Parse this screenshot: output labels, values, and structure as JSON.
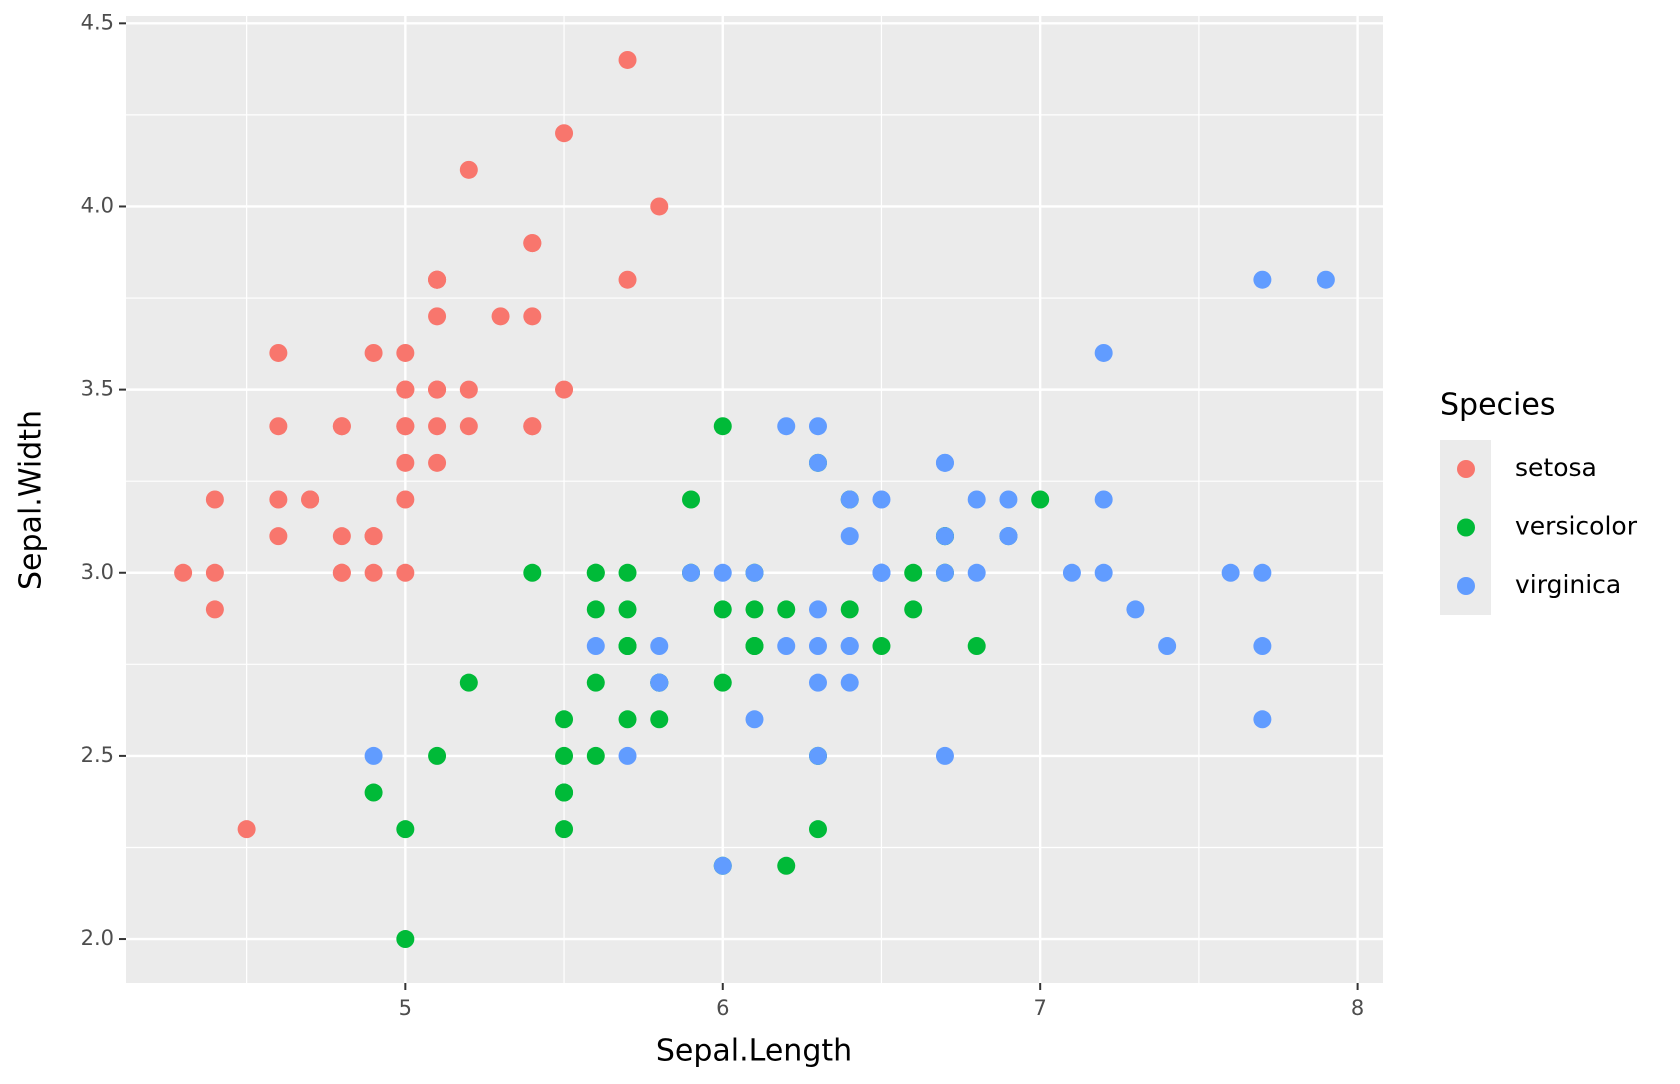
{
  "chart_data": {
    "type": "scatter",
    "x_label": "Sepal.Length",
    "y_label": "Sepal.Width",
    "legend_title": "Species",
    "legend_position": "right",
    "grid": true,
    "xlim": [
      4.12,
      8.08
    ],
    "ylim": [
      1.88,
      4.52
    ],
    "xticks": [
      5,
      6,
      7,
      8
    ],
    "yticks": [
      {
        "value": 2,
        "label": "2.0"
      },
      2.5,
      {
        "value": 3,
        "label": "3.0"
      },
      3.5,
      {
        "value": 4,
        "label": "4.0"
      },
      4.5
    ],
    "x_minor_ticks": [
      4.5,
      5.5,
      6.5,
      7.5
    ],
    "y_minor_ticks": [
      2.25,
      2.75,
      3.25,
      3.75,
      4.25
    ],
    "series": [
      {
        "name": "setosa",
        "color": "#F8766D",
        "x": [
          5.1,
          4.9,
          4.7,
          4.6,
          5.0,
          5.4,
          4.6,
          5.0,
          4.4,
          4.9,
          5.4,
          4.8,
          4.8,
          4.3,
          5.8,
          5.7,
          5.4,
          5.1,
          5.7,
          5.1,
          5.4,
          5.1,
          4.6,
          5.1,
          4.8,
          5.0,
          5.0,
          5.2,
          5.2,
          4.7,
          4.8,
          5.4,
          5.2,
          5.5,
          4.9,
          5.0,
          5.5,
          4.9,
          4.4,
          5.1,
          5.0,
          4.5,
          4.4,
          5.0,
          5.1,
          4.8,
          5.1,
          4.6,
          5.3,
          5.0
        ],
        "values": [
          3.5,
          3.0,
          3.2,
          3.1,
          3.6,
          3.9,
          3.4,
          3.4,
          2.9,
          3.1,
          3.7,
          3.4,
          3.0,
          3.0,
          4.0,
          4.4,
          3.9,
          3.5,
          3.8,
          3.8,
          3.4,
          3.7,
          3.6,
          3.3,
          3.4,
          3.0,
          3.4,
          3.5,
          3.4,
          3.2,
          3.1,
          3.4,
          4.1,
          4.2,
          3.1,
          3.2,
          3.5,
          3.6,
          3.0,
          3.4,
          3.5,
          2.3,
          3.2,
          3.5,
          3.8,
          3.0,
          3.8,
          3.2,
          3.7,
          3.3
        ]
      },
      {
        "name": "versicolor",
        "color": "#00BA38",
        "x": [
          7.0,
          6.4,
          6.9,
          5.5,
          6.5,
          5.7,
          6.3,
          4.9,
          6.6,
          5.2,
          5.0,
          5.9,
          6.0,
          6.1,
          5.6,
          6.7,
          5.6,
          5.8,
          6.2,
          5.6,
          5.9,
          6.1,
          6.3,
          6.1,
          6.4,
          6.6,
          6.8,
          6.7,
          6.0,
          5.7,
          5.5,
          5.5,
          5.8,
          6.0,
          5.4,
          6.0,
          6.7,
          6.3,
          5.6,
          5.5,
          5.5,
          6.1,
          5.8,
          5.0,
          5.6,
          5.7,
          5.7,
          6.2,
          5.1,
          5.7
        ],
        "values": [
          3.2,
          3.2,
          3.1,
          2.3,
          2.8,
          2.8,
          3.3,
          2.4,
          2.9,
          2.7,
          2.0,
          3.0,
          2.2,
          2.9,
          2.9,
          3.1,
          3.0,
          2.7,
          2.2,
          2.5,
          3.2,
          2.8,
          2.5,
          2.8,
          2.9,
          3.0,
          2.8,
          3.0,
          2.9,
          2.6,
          2.4,
          2.4,
          2.7,
          2.7,
          3.0,
          3.4,
          3.1,
          2.3,
          3.0,
          2.5,
          2.6,
          3.0,
          2.6,
          2.3,
          2.7,
          3.0,
          2.9,
          2.9,
          2.5,
          2.8
        ]
      },
      {
        "name": "virginica",
        "color": "#619CFF",
        "x": [
          6.3,
          5.8,
          7.1,
          6.3,
          6.5,
          7.6,
          4.9,
          7.3,
          6.7,
          7.2,
          6.5,
          6.4,
          6.8,
          5.7,
          5.8,
          6.4,
          6.5,
          7.7,
          7.7,
          6.0,
          6.9,
          5.6,
          7.7,
          6.3,
          6.7,
          7.2,
          6.2,
          6.1,
          6.4,
          7.2,
          7.4,
          7.9,
          6.4,
          6.3,
          6.1,
          7.7,
          6.3,
          6.4,
          6.0,
          6.9,
          6.7,
          6.9,
          5.8,
          6.8,
          6.7,
          6.7,
          6.3,
          6.5,
          6.2,
          5.9
        ],
        "values": [
          3.3,
          2.7,
          3.0,
          2.9,
          3.0,
          3.0,
          2.5,
          2.9,
          2.5,
          3.6,
          3.2,
          2.7,
          3.0,
          2.5,
          2.8,
          3.2,
          3.0,
          3.8,
          2.6,
          2.2,
          3.2,
          2.8,
          2.8,
          2.7,
          3.3,
          3.2,
          2.8,
          3.0,
          2.8,
          3.0,
          2.8,
          3.8,
          2.8,
          2.8,
          2.6,
          3.0,
          3.4,
          3.1,
          3.0,
          3.1,
          3.1,
          3.1,
          2.7,
          3.2,
          3.3,
          3.0,
          2.5,
          3.0,
          3.4,
          3.0
        ]
      }
    ]
  }
}
